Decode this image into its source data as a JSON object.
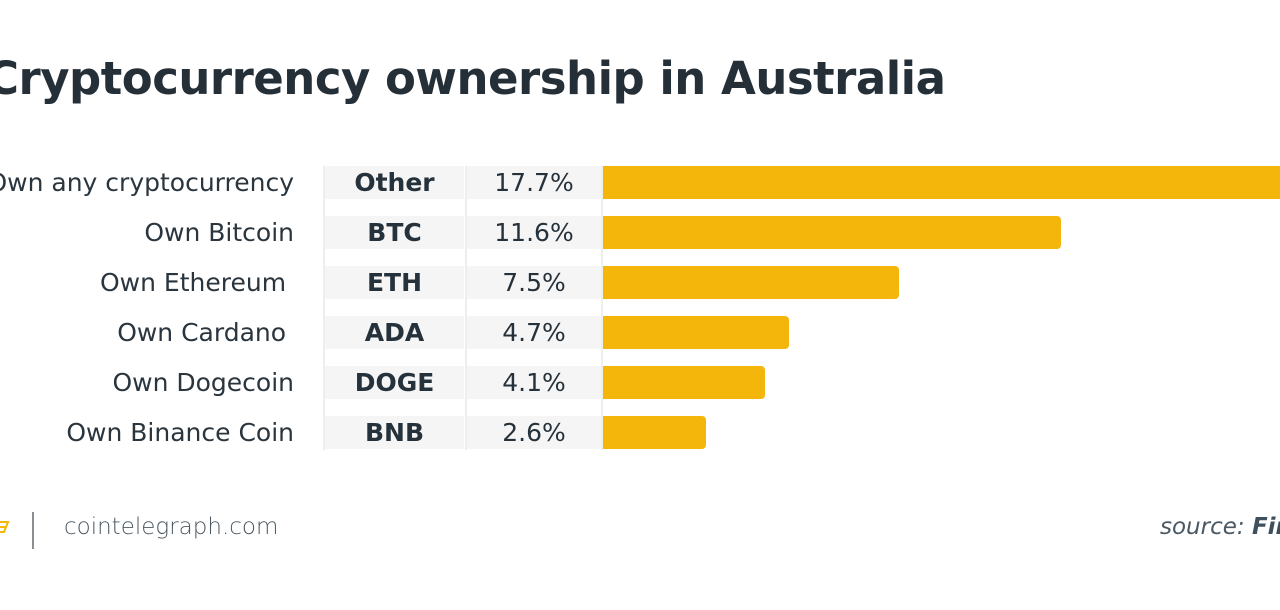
{
  "title": "Cryptocurrency ownership in Australia",
  "rows": [
    {
      "label": "Own any cryptocurrency",
      "code": "Other",
      "pct": "17.7%",
      "value": 17.7
    },
    {
      "label": "Own Bitcoin",
      "code": "BTC",
      "pct": "11.6%",
      "value": 11.6
    },
    {
      "label": "Own Ethereum ",
      "code": "ETH",
      "pct": "7.5%",
      "value": 7.5
    },
    {
      "label": "Own Cardano ",
      "code": "ADA",
      "pct": "4.7%",
      "value": 4.7
    },
    {
      "label": "Own Dogecoin",
      "code": "DOGE",
      "pct": "4.1%",
      "value": 4.1
    },
    {
      "label": "Own Binance Coin",
      "code": "BNB",
      "pct": "2.6%",
      "value": 2.6
    }
  ],
  "footer": {
    "logo_icon": "cointelegraph-logo-icon",
    "site": "cointelegraph.com",
    "source_prefix": "source: ",
    "source_name": "Finder"
  },
  "colors": {
    "bar": "#f4b60a",
    "cell_bg": "#f5f5f5",
    "title": "#252f38"
  },
  "chart_data": {
    "type": "bar",
    "orientation": "horizontal",
    "title": "Cryptocurrency ownership in Australia",
    "categories": [
      "Own any cryptocurrency",
      "Own Bitcoin",
      "Own Ethereum",
      "Own Cardano",
      "Own Dogecoin",
      "Own Binance Coin"
    ],
    "codes": [
      "Other",
      "BTC",
      "ETH",
      "ADA",
      "DOGE",
      "BNB"
    ],
    "values": [
      17.7,
      11.6,
      7.5,
      4.7,
      4.1,
      2.6
    ],
    "unit": "%",
    "xlabel": "",
    "ylabel": "",
    "grid": false,
    "legend": null,
    "source": "Finder"
  }
}
